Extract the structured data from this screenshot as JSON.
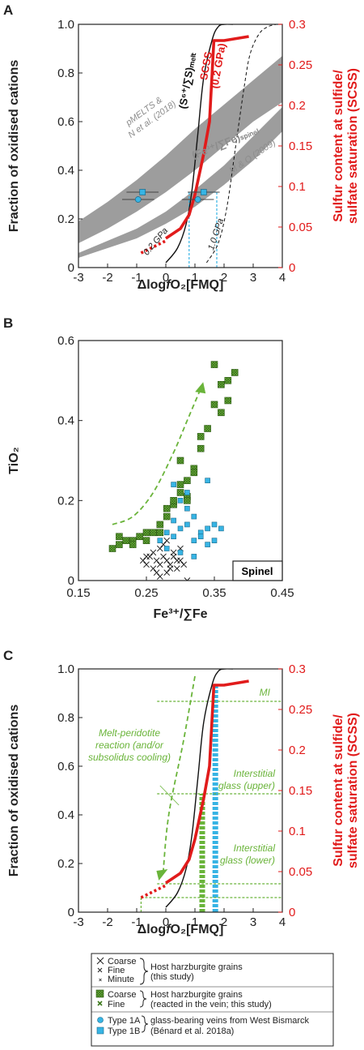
{
  "chart_data": [
    {
      "panel": "A",
      "type": "line",
      "xlabel": "ΔlogfO2[FMQ]",
      "ylabel": "Fraction of oxidised cations",
      "ylabel_right": "Sulfur content at sulfide/ sulfate saturation (SCSS)",
      "xlim": [
        -3,
        4
      ],
      "ylim": [
        0,
        1
      ],
      "ylim_right": [
        0,
        0.3
      ],
      "x_ticks": [
        "-3",
        "-2",
        "-1",
        "0",
        "1",
        "2",
        "3",
        "4"
      ],
      "y_ticks": [
        "0",
        "0.2",
        "0.4",
        "0.6",
        "0.8",
        "1.0"
      ],
      "y_ticks_right": [
        "0",
        "0.05",
        "0.1",
        "0.15",
        "0.2",
        "0.25",
        "0.3"
      ],
      "bands": [
        {
          "name": "pMELTS & N et al. (2018)",
          "x": [
            -3,
            -2,
            -1,
            0,
            1,
            2,
            3,
            4
          ],
          "lower": [
            0.1,
            0.16,
            0.23,
            0.31,
            0.4,
            0.5,
            0.6,
            0.68
          ],
          "upper": [
            0.19,
            0.27,
            0.36,
            0.46,
            0.57,
            0.67,
            0.77,
            0.87
          ]
        },
        {
          "name": "M & O (2009)",
          "x": [
            -3,
            -2,
            -1,
            0,
            1,
            2,
            3,
            4
          ],
          "lower": [
            0.04,
            0.08,
            0.12,
            0.18,
            0.25,
            0.34,
            0.44,
            0.56
          ],
          "upper": [
            0.06,
            0.11,
            0.16,
            0.23,
            0.32,
            0.42,
            0.54,
            0.66
          ]
        }
      ],
      "series": [
        {
          "name": "(S6+/∑S)melt 0.2 GPa",
          "style": "solid-black",
          "x": [
            0,
            0.4,
            0.7,
            0.9,
            1.1,
            1.3,
            1.6,
            1.8,
            2.0,
            2.3
          ],
          "y": [
            0.02,
            0.08,
            0.18,
            0.32,
            0.55,
            0.78,
            0.94,
            0.99,
            1.0,
            1.0
          ]
        },
        {
          "name": "1.0 GPa",
          "style": "dashed-black",
          "x": [
            1.4,
            1.8,
            2.1,
            2.4,
            2.7,
            2.9,
            3.2,
            3.5,
            3.8
          ],
          "y": [
            0.02,
            0.1,
            0.25,
            0.5,
            0.75,
            0.88,
            0.96,
            0.99,
            1.0
          ]
        },
        {
          "name": "SCSS (0.2 GPa)",
          "style": "solid-red",
          "axis": "right",
          "x": [
            0,
            0.5,
            0.8,
            1.0,
            1.3,
            1.5,
            1.65,
            2.0,
            2.85
          ],
          "y": [
            0.036,
            0.048,
            0.065,
            0.09,
            0.14,
            0.18,
            0.28,
            0.28,
            0.285
          ]
        },
        {
          "name": "SCSS extension",
          "style": "dotted-red",
          "axis": "right",
          "x": [
            -0.85,
            0
          ],
          "y": [
            0.018,
            0.033
          ]
        }
      ],
      "points": [
        {
          "type": "Type 1A",
          "x": -0.95,
          "y": 0.28,
          "xerr": 0.55,
          "yerr": 0.012
        },
        {
          "type": "Type 1B",
          "x": -0.8,
          "y": 0.31,
          "xerr": 0.55,
          "yerr": 0.012
        },
        {
          "type": "Type 1A",
          "x": 1.1,
          "y": 0.28,
          "xerr": 0.55,
          "yerr": 0.012
        },
        {
          "type": "Type 1B",
          "x": 1.3,
          "y": 0.31,
          "xerr": 0.55,
          "yerr": 0.012
        }
      ],
      "vlines": [
        0.8,
        1.75
      ],
      "annotations": [
        "SCSS",
        "(0.2 GPa)",
        "(S6+/∑S)melt",
        "(Fe3+/∑Fe)spinel",
        "pMELTS &",
        "N et al. (2018)",
        "M & O (2009)",
        "0.2 GPa",
        "1.0 GPa"
      ]
    },
    {
      "panel": "B",
      "type": "scatter",
      "xlabel": "Fe3+/∑Fe",
      "ylabel": "TiO2",
      "xlim": [
        0.15,
        0.45
      ],
      "ylim": [
        0,
        0.6
      ],
      "x_ticks": [
        "0.15",
        "0.25",
        "0.35",
        "0.45"
      ],
      "y_ticks": [
        "0",
        "0.2",
        "0.4",
        "0.6"
      ],
      "box_label": "Spinel",
      "series": [
        {
          "name": "Coarse/Fine/Minute host grains",
          "x": [
            0.245,
            0.25,
            0.255,
            0.26,
            0.265,
            0.27,
            0.275,
            0.28,
            0.285,
            0.29,
            0.295,
            0.3,
            0.305,
            0.26,
            0.27,
            0.28,
            0.29,
            0.25,
            0.3,
            0.265,
            0.275,
            0.285,
            0.295,
            0.31,
            0.28,
            0.27
          ],
          "y": [
            0.05,
            0.04,
            0.06,
            0.03,
            0.05,
            0.04,
            0.06,
            0.05,
            0.04,
            0.06,
            0.03,
            0.05,
            0.04,
            0.07,
            0.08,
            0.02,
            0.07,
            0.06,
            0.08,
            0.02,
            0.09,
            0.03,
            0.05,
            0.0,
            0.1,
            0.01
          ]
        },
        {
          "name": "Coarse/Fine reacted grains",
          "x": [
            0.2,
            0.21,
            0.22,
            0.23,
            0.24,
            0.25,
            0.26,
            0.27,
            0.28,
            0.29,
            0.3,
            0.31,
            0.32,
            0.33,
            0.34,
            0.35,
            0.36,
            0.37,
            0.38,
            0.21,
            0.23,
            0.25,
            0.27,
            0.29,
            0.31,
            0.33,
            0.28,
            0.3,
            0.32,
            0.3,
            0.31,
            0.36,
            0.35,
            0.37
          ],
          "y": [
            0.08,
            0.09,
            0.1,
            0.1,
            0.11,
            0.12,
            0.12,
            0.14,
            0.16,
            0.19,
            0.22,
            0.25,
            0.28,
            0.33,
            0.38,
            0.44,
            0.49,
            0.5,
            0.52,
            0.11,
            0.09,
            0.1,
            0.12,
            0.2,
            0.21,
            0.36,
            0.18,
            0.24,
            0.27,
            0.3,
            0.2,
            0.42,
            0.54,
            0.45
          ]
        },
        {
          "name": "Type 1A/1B vein glass",
          "x": [
            0.27,
            0.28,
            0.29,
            0.3,
            0.31,
            0.32,
            0.33,
            0.34,
            0.35,
            0.28,
            0.3,
            0.32,
            0.34,
            0.29,
            0.31,
            0.33,
            0.3,
            0.32,
            0.35,
            0.31,
            0.29,
            0.34,
            0.36
          ],
          "y": [
            0.1,
            0.12,
            0.11,
            0.13,
            0.14,
            0.1,
            0.12,
            0.13,
            0.1,
            0.08,
            0.07,
            0.16,
            0.09,
            0.15,
            0.18,
            0.11,
            0.2,
            0.06,
            0.14,
            0.22,
            0.24,
            0.25,
            0.13
          ]
        }
      ],
      "trend_arrow": {
        "x": [
          0.2,
          0.23,
          0.26,
          0.29,
          0.31,
          0.33
        ],
        "y": [
          0.14,
          0.16,
          0.22,
          0.32,
          0.4,
          0.48
        ]
      }
    },
    {
      "panel": "C",
      "type": "line",
      "xlabel": "ΔlogfO2[FMQ]",
      "ylabel": "Fraction of oxidised cations",
      "ylabel_right": "Sulfur content at sulfide/ sulfate saturation (SCSS)",
      "xlim": [
        -3,
        4
      ],
      "ylim": [
        0,
        1
      ],
      "ylim_right": [
        0,
        0.3
      ],
      "x_ticks": [
        "-3",
        "-2",
        "-1",
        "0",
        "1",
        "2",
        "3",
        "4"
      ],
      "y_ticks": [
        "0",
        "0.2",
        "0.4",
        "0.6",
        "0.8",
        "1.0"
      ],
      "y_ticks_right": [
        "0",
        "0.05",
        "0.1",
        "0.15",
        "0.2",
        "0.25",
        "0.3"
      ],
      "series": [
        {
          "name": "(S6+/∑S)melt",
          "style": "solid-black",
          "x": [
            0,
            0.4,
            0.7,
            0.9,
            1.1,
            1.3,
            1.6,
            1.8,
            2.0,
            2.3
          ],
          "y": [
            0.02,
            0.08,
            0.18,
            0.32,
            0.55,
            0.78,
            0.94,
            0.99,
            1.0,
            1.0
          ]
        },
        {
          "name": "SCSS",
          "style": "solid-red",
          "axis": "right",
          "x": [
            0,
            0.5,
            0.8,
            1.0,
            1.3,
            1.5,
            1.65,
            2.0,
            2.85
          ],
          "y": [
            0.036,
            0.048,
            0.065,
            0.09,
            0.14,
            0.18,
            0.28,
            0.28,
            0.285
          ]
        }
      ],
      "hlevels": [
        {
          "label": "MI",
          "y": 0.26
        },
        {
          "label": "Interstitial glass (upper)",
          "y": 0.146
        },
        {
          "label": "Interstitial glass (lower)",
          "y": 0.035
        }
      ],
      "annotations": [
        "MI",
        "Melt-peridotite",
        "reaction (and/or",
        "subsolidus cooling)",
        "Interstitial",
        "glass (upper)",
        "Interstitial",
        "glass (lower)"
      ]
    }
  ],
  "panels": {
    "a": {
      "label": "A",
      "xlabel_pre": "Δlog",
      "xlabel_f": "f",
      "xlabel_post": "O₂[FMQ]",
      "ylabel": "Fraction of oxidised cations",
      "ylabel_r1": "Sulfur content at sulfide/",
      "ylabel_r2": "sulfate saturation (SCSS)",
      "ann_scss": "SCSS",
      "ann_scss2": "(0.2 GPa)",
      "ann_s6": "(S⁶⁺/∑S)ₘₑₗₜ",
      "ann_fe": "(Fe³⁺/∑Fe)ₛₚᵢₙₑₗ",
      "ann_pm1": "pMELTS &",
      "ann_pm2": "N et al. (2018)",
      "ann_mo": "M & O (2009)",
      "ann_02": "0.2 GPa",
      "ann_10": "1.0 GPa"
    },
    "b": {
      "label": "B",
      "xlabel": "Fe³⁺/∑Fe",
      "ylabel": "TiO₂",
      "box": "Spinel"
    },
    "c": {
      "label": "C",
      "xlabel_pre": "Δlog",
      "xlabel_f": "f",
      "xlabel_post": "O₂[FMQ]",
      "ylabel": "Fraction of oxidised cations",
      "ylabel_r1": "Sulfur content at sulfide/",
      "ylabel_r2": "sulfate saturation (SCSS)",
      "mi": "MI",
      "mpr1": "Melt-peridotite",
      "mpr2": "reaction (and/or",
      "mpr3": "subsolidus cooling)",
      "igu1": "Interstitial",
      "igu2": "glass (upper)",
      "igl1": "Interstitial",
      "igl2": "glass (lower)"
    }
  },
  "legend": {
    "coarse": "Coarse",
    "fine": "Fine",
    "minute": "Minute",
    "host1": "Host harzburgite grains",
    "host2": "(this study)",
    "rcoarse": "Coarse",
    "rfine": "Fine",
    "react1": "Host harzburgite grains",
    "react2": "(reacted in the vein; this study)",
    "t1a": "Type 1A",
    "t1b": "Type 1B",
    "glass1": "glass-bearing veins from West Bismarck",
    "glass2": "(Bénard et al. 2018a)"
  },
  "colors": {
    "red": "#e11b1b",
    "green": "#6ab43a",
    "blue": "#37b4e4",
    "gray": "#8c8c8c",
    "black": "#111111"
  }
}
